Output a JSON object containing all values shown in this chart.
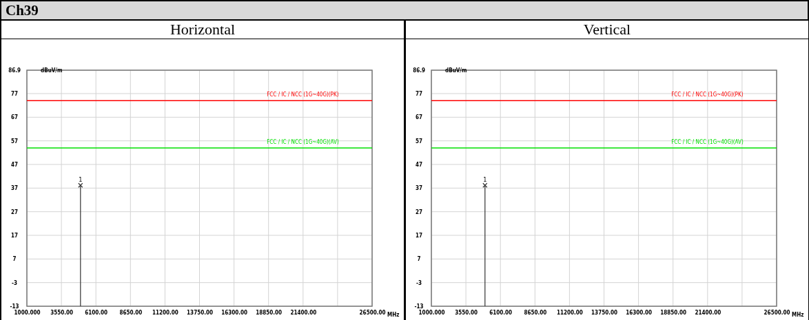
{
  "chart_data": [
    {
      "type": "lollipop",
      "title": "Horizontal",
      "annotations": [
        "Ch39",
        {
          "text": "1",
          "x": 4960,
          "y": 38.2
        }
      ],
      "xlabel": "MHz",
      "ylabel": "dBuV/m",
      "xlim": [
        1000,
        26500
      ],
      "xticks": [
        {
          "value": 1000,
          "label": "1000.000"
        },
        {
          "value": 3550,
          "label": "3550.00"
        },
        {
          "value": 6100,
          "label": "6100.00"
        },
        {
          "value": 8650,
          "label": "8650.00"
        },
        {
          "value": 11200,
          "label": "11200.00"
        },
        {
          "value": 13750,
          "label": "13750.00"
        },
        {
          "value": 16300,
          "label": "16300.00"
        },
        {
          "value": 18850,
          "label": "18850.00"
        },
        {
          "value": 21400,
          "label": "21400.00"
        },
        {
          "value": 23950,
          "label": null
        },
        {
          "value": 26500,
          "label": "26500.00"
        }
      ],
      "ylim": [
        -13,
        86.9
      ],
      "yticks": [
        -13,
        -3,
        7,
        17,
        27,
        37,
        47,
        57,
        67,
        77,
        86.9
      ],
      "series": [
        {
          "color": "#333333",
          "x": [
            4960
          ],
          "values": [
            38.2
          ]
        }
      ],
      "marker": "cross",
      "grid": true,
      "ref_lines": [
        {
          "axis": "y",
          "value": 74,
          "label": "FCC / IC / NCC (1G~40G)(PK)",
          "color": "#ff0000"
        },
        {
          "axis": "y",
          "value": 54,
          "label": "FCC / IC / NCC (1G~40G)(AV)",
          "color": "#00e000"
        }
      ]
    },
    {
      "type": "lollipop",
      "title": "Vertical",
      "annotations": [
        {
          "text": "1",
          "x": 4960,
          "y": 38.2
        }
      ],
      "xlabel": "MHz",
      "ylabel": "dBuV/m",
      "xlim": [
        1000,
        26500
      ],
      "xticks": [
        {
          "value": 1000,
          "label": "1000.000"
        },
        {
          "value": 3550,
          "label": "3550.00"
        },
        {
          "value": 6100,
          "label": "6100.00"
        },
        {
          "value": 8650,
          "label": "8650.00"
        },
        {
          "value": 11200,
          "label": "11200.00"
        },
        {
          "value": 13750,
          "label": "13750.00"
        },
        {
          "value": 16300,
          "label": "16300.00"
        },
        {
          "value": 18850,
          "label": "18850.00"
        },
        {
          "value": 21400,
          "label": "21400.00"
        },
        {
          "value": 23950,
          "label": null
        },
        {
          "value": 26500,
          "label": "26500.00"
        }
      ],
      "ylim": [
        -13,
        86.9
      ],
      "yticks": [
        -13,
        -3,
        7,
        17,
        27,
        37,
        47,
        57,
        67,
        77,
        86.9
      ],
      "series": [
        {
          "color": "#333333",
          "x": [
            4960
          ],
          "values": [
            38.2
          ]
        }
      ],
      "marker": "cross",
      "grid": true,
      "ref_lines": [
        {
          "axis": "y",
          "value": 74,
          "label": "FCC / IC / NCC (1G~40G)(PK)",
          "color": "#ff0000"
        },
        {
          "axis": "y",
          "value": 54,
          "label": "FCC / IC / NCC (1G~40G)(AV)",
          "color": "#00e000"
        }
      ]
    }
  ]
}
